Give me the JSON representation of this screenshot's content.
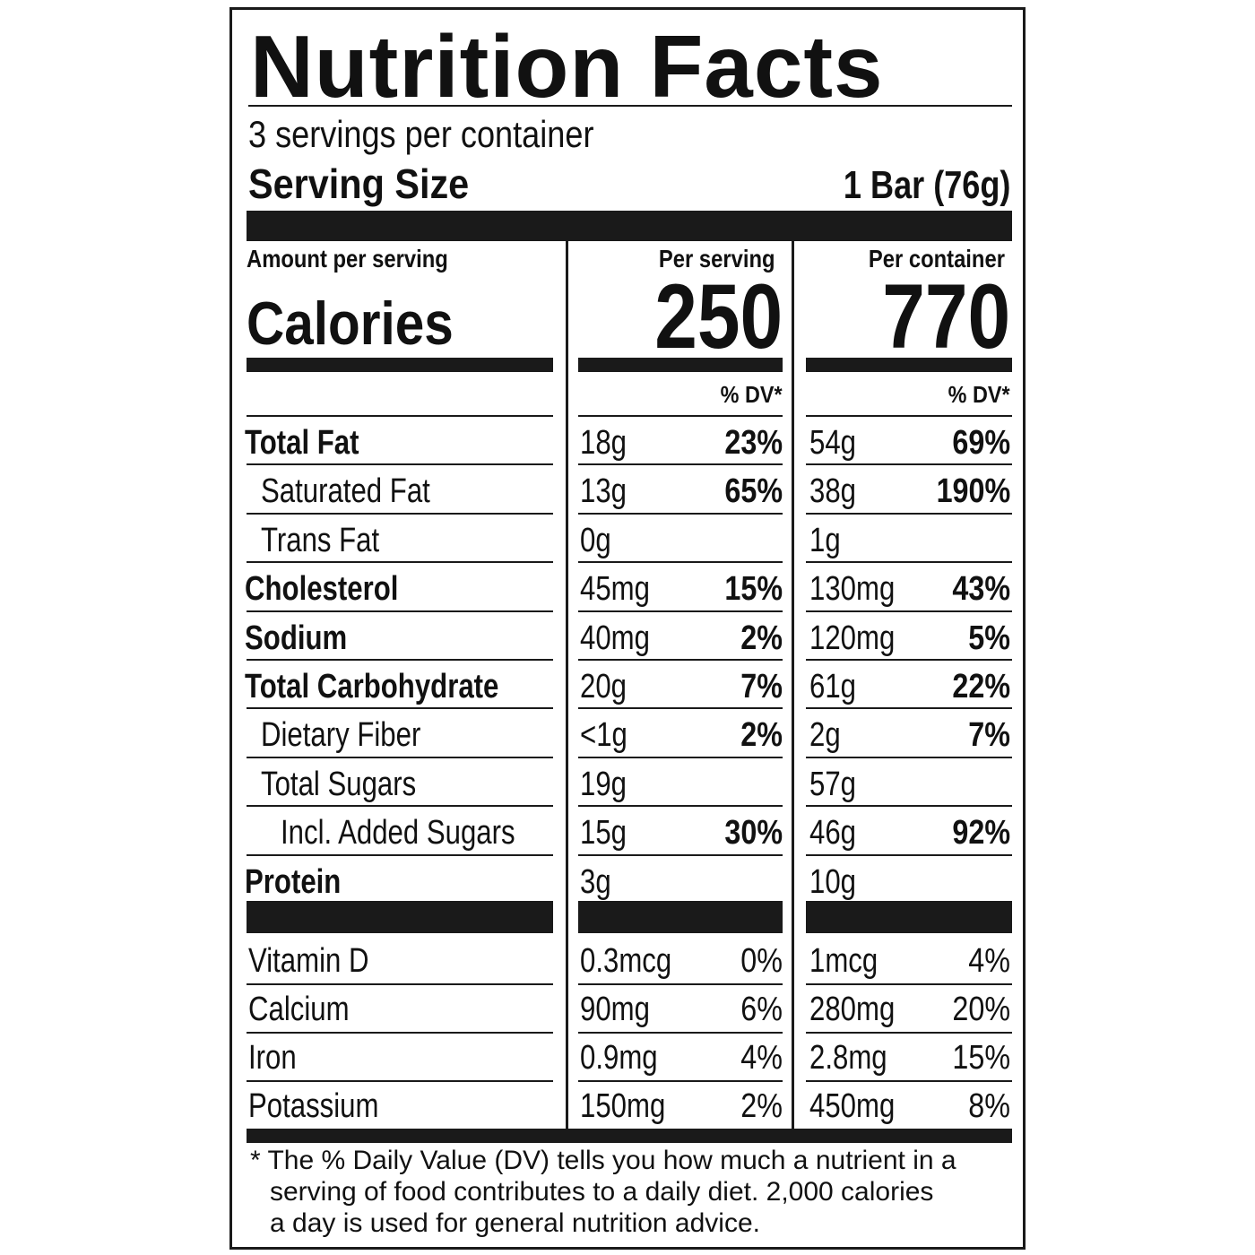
{
  "title": "Nutrition Facts",
  "servings_per_container": "3 servings per container",
  "serving_size_label": "Serving Size",
  "serving_size_value": "1 Bar (76g)",
  "amount_per_serving": "Amount per serving",
  "calories_label": "Calories",
  "per_serving_label": "Per serving",
  "per_container_label": "Per container",
  "calories_per_serving": "250",
  "calories_per_container": "770",
  "dv_header": "% DV*",
  "nutrients": [
    {
      "name": "Total Fat",
      "style": "bold",
      "indent": 0,
      "serving_amt": "18g",
      "serving_dv": "23%",
      "container_amt": "54g",
      "container_dv": "69%"
    },
    {
      "name": "Saturated Fat",
      "style": "normal",
      "indent": 1,
      "serving_amt": "13g",
      "serving_dv": "65%",
      "container_amt": "38g",
      "container_dv": "190%"
    },
    {
      "name": "Trans Fat",
      "style": "normal",
      "indent": 1,
      "serving_amt": "0g",
      "serving_dv": "",
      "container_amt": "1g",
      "container_dv": ""
    },
    {
      "name": "Cholesterol",
      "style": "bold",
      "indent": 0,
      "serving_amt": "45mg",
      "serving_dv": "15%",
      "container_amt": "130mg",
      "container_dv": "43%"
    },
    {
      "name": "Sodium",
      "style": "bold",
      "indent": 0,
      "serving_amt": "40mg",
      "serving_dv": "2%",
      "container_amt": "120mg",
      "container_dv": "5%"
    },
    {
      "name": "Total Carbohydrate",
      "style": "bold",
      "indent": 0,
      "serving_amt": "20g",
      "serving_dv": "7%",
      "container_amt": "61g",
      "container_dv": "22%"
    },
    {
      "name": "Dietary Fiber",
      "style": "normal",
      "indent": 1,
      "serving_amt": "<1g",
      "serving_dv": "2%",
      "container_amt": "2g",
      "container_dv": "7%"
    },
    {
      "name": "Total Sugars",
      "style": "normal",
      "indent": 1,
      "serving_amt": "19g",
      "serving_dv": "",
      "container_amt": "57g",
      "container_dv": ""
    },
    {
      "name": "Incl. Added Sugars",
      "style": "normal",
      "indent": 2,
      "serving_amt": "15g",
      "serving_dv": "30%",
      "container_amt": "46g",
      "container_dv": "92%"
    },
    {
      "name": "Protein",
      "style": "bold",
      "indent": 0,
      "serving_amt": "3g",
      "serving_dv": "",
      "container_amt": "10g",
      "container_dv": ""
    }
  ],
  "vitamins": [
    {
      "name": "Vitamin D",
      "serving_amt": "0.3mcg",
      "serving_dv": "0%",
      "container_amt": "1mcg",
      "container_dv": "4%"
    },
    {
      "name": "Calcium",
      "serving_amt": "90mg",
      "serving_dv": "6%",
      "container_amt": "280mg",
      "container_dv": "20%"
    },
    {
      "name": "Iron",
      "serving_amt": "0.9mg",
      "serving_dv": "4%",
      "container_amt": "2.8mg",
      "container_dv": "15%"
    },
    {
      "name": "Potassium",
      "serving_amt": "150mg",
      "serving_dv": "2%",
      "container_amt": "450mg",
      "container_dv": "8%"
    }
  ],
  "footnote_lines": [
    "* The % Daily Value (DV) tells you how much a nutrient in a",
    "serving of food contributes to a daily diet. 2,000 calories",
    "a day is used for general nutrition advice."
  ]
}
